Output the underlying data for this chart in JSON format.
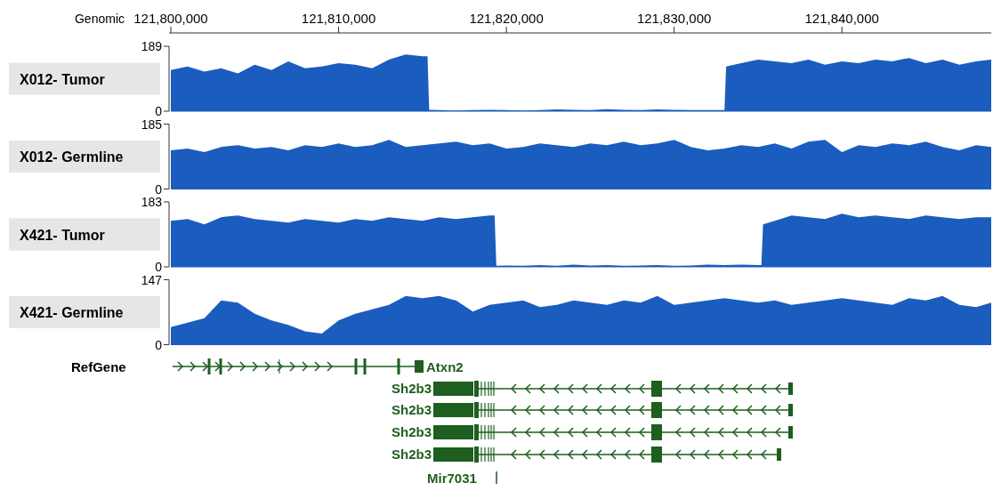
{
  "chart_data": [
    {
      "type": "area",
      "title": "X012- Tumor",
      "xlabel": "Genomic",
      "color": "#1b5cbf",
      "xlim": [
        121800000,
        121848900
      ],
      "xticks": [
        {
          "value": 121800000,
          "label": "121,800,000"
        },
        {
          "value": 121810000,
          "label": "121,810,000"
        },
        {
          "value": 121820000,
          "label": "121,820,000"
        },
        {
          "value": 121830000,
          "label": "121,830,000"
        },
        {
          "value": 121840000,
          "label": "121,840,000"
        }
      ],
      "ylim": [
        0,
        189
      ],
      "yticks": [
        0,
        189
      ],
      "x": [
        121800000,
        121801000,
        121802000,
        121803000,
        121804000,
        121805000,
        121806000,
        121807000,
        121808000,
        121809000,
        121810000,
        121811000,
        121812000,
        121813000,
        121814000,
        121815000,
        121815300,
        121815400,
        121816000,
        121817000,
        121818000,
        121819000,
        121820000,
        121821000,
        121822000,
        121823000,
        121824000,
        121825000,
        121826000,
        121827000,
        121828000,
        121829000,
        121830000,
        121831000,
        121832000,
        121833000,
        121833100,
        121834000,
        121835000,
        121836000,
        121837000,
        121838000,
        121839000,
        121840000,
        121841000,
        121842000,
        121843000,
        121844000,
        121845000,
        121846000,
        121847000,
        121848000,
        121848900
      ],
      "values": [
        120,
        130,
        115,
        125,
        110,
        135,
        120,
        145,
        125,
        130,
        140,
        135,
        125,
        150,
        165,
        160,
        160,
        4,
        3,
        2,
        3,
        4,
        3,
        2,
        3,
        5,
        4,
        3,
        6,
        4,
        3,
        5,
        4,
        3,
        3,
        3,
        130,
        140,
        150,
        145,
        140,
        150,
        135,
        145,
        140,
        150,
        145,
        155,
        140,
        150,
        135,
        145,
        150
      ]
    },
    {
      "type": "area",
      "title": "X012- Germline",
      "color": "#1b5cbf",
      "tick_labels": "y",
      "xlim": [
        121800000,
        121848900
      ],
      "ylim": [
        0,
        185
      ],
      "yticks": [
        0,
        185
      ],
      "x": [
        121800000,
        121801000,
        121802000,
        121803000,
        121804000,
        121805000,
        121806000,
        121807000,
        121808000,
        121809000,
        121810000,
        121811000,
        121812000,
        121813000,
        121814000,
        121815000,
        121816000,
        121817000,
        121818000,
        121819000,
        121820000,
        121821000,
        121822000,
        121823000,
        121824000,
        121825000,
        121826000,
        121827000,
        121828000,
        121829000,
        121830000,
        121831000,
        121832000,
        121833000,
        121834000,
        121835000,
        121836000,
        121837000,
        121838000,
        121839000,
        121840000,
        121841000,
        121842000,
        121843000,
        121844000,
        121845000,
        121846000,
        121847000,
        121848000,
        121848900
      ],
      "values": [
        110,
        115,
        105,
        120,
        125,
        115,
        120,
        110,
        125,
        120,
        130,
        120,
        125,
        140,
        120,
        125,
        130,
        135,
        125,
        130,
        115,
        120,
        130,
        125,
        120,
        130,
        125,
        135,
        125,
        130,
        140,
        120,
        110,
        115,
        125,
        120,
        130,
        115,
        135,
        140,
        105,
        125,
        120,
        130,
        125,
        135,
        120,
        110,
        125,
        120
      ]
    },
    {
      "type": "area",
      "title": "X421- Tumor",
      "color": "#1b5cbf",
      "tick_labels": "y",
      "xlim": [
        121800000,
        121848900
      ],
      "ylim": [
        0,
        183
      ],
      "yticks": [
        0,
        183
      ],
      "x": [
        121800000,
        121801000,
        121802000,
        121803000,
        121804000,
        121805000,
        121806000,
        121807000,
        121808000,
        121809000,
        121810000,
        121811000,
        121812000,
        121813000,
        121814000,
        121815000,
        121816000,
        121817000,
        121818000,
        121819000,
        121819300,
        121819400,
        121820000,
        121821000,
        121822000,
        121823000,
        121824000,
        121825000,
        121826000,
        121827000,
        121828000,
        121829000,
        121830000,
        121831000,
        121832000,
        121833000,
        121834000,
        121835000,
        121835200,
        121835300,
        121836000,
        121837000,
        121838000,
        121839000,
        121840000,
        121841000,
        121842000,
        121843000,
        121844000,
        121845000,
        121846000,
        121847000,
        121848000,
        121848900
      ],
      "values": [
        130,
        135,
        120,
        140,
        145,
        135,
        130,
        125,
        135,
        130,
        125,
        135,
        130,
        140,
        135,
        130,
        140,
        135,
        140,
        145,
        145,
        3,
        4,
        3,
        5,
        3,
        6,
        4,
        5,
        3,
        4,
        5,
        3,
        4,
        6,
        5,
        6,
        5,
        5,
        120,
        130,
        145,
        140,
        135,
        150,
        140,
        145,
        140,
        135,
        145,
        140,
        135,
        140,
        140
      ]
    },
    {
      "type": "area",
      "title": "X421- Germline",
      "color": "#1b5cbf",
      "tick_labels": "y",
      "xlim": [
        121800000,
        121848900
      ],
      "ylim": [
        0,
        147
      ],
      "yticks": [
        0,
        147
      ],
      "x": [
        121800000,
        121801000,
        121802000,
        121803000,
        121804000,
        121805000,
        121806000,
        121807000,
        121808000,
        121809000,
        121810000,
        121811000,
        121812000,
        121813000,
        121814000,
        121815000,
        121816000,
        121817000,
        121818000,
        121819000,
        121820000,
        121821000,
        121822000,
        121823000,
        121824000,
        121825000,
        121826000,
        121827000,
        121828000,
        121829000,
        121830000,
        121831000,
        121832000,
        121833000,
        121834000,
        121835000,
        121836000,
        121837000,
        121838000,
        121839000,
        121840000,
        121841000,
        121842000,
        121843000,
        121844000,
        121845000,
        121846000,
        121847000,
        121848000,
        121848900
      ],
      "values": [
        40,
        50,
        60,
        100,
        95,
        70,
        55,
        45,
        30,
        25,
        55,
        70,
        80,
        90,
        110,
        105,
        110,
        100,
        75,
        90,
        95,
        100,
        85,
        90,
        100,
        95,
        90,
        100,
        95,
        110,
        90,
        95,
        100,
        105,
        100,
        95,
        100,
        90,
        95,
        100,
        105,
        100,
        95,
        90,
        105,
        100,
        110,
        90,
        85,
        95
      ]
    },
    {
      "type": "other",
      "title": "RefGene",
      "annotations": [
        "Atxn2",
        "Sh2b3",
        "Sh2b3",
        "Sh2b3",
        "Sh2b3",
        "Mir7031"
      ]
    }
  ]
}
